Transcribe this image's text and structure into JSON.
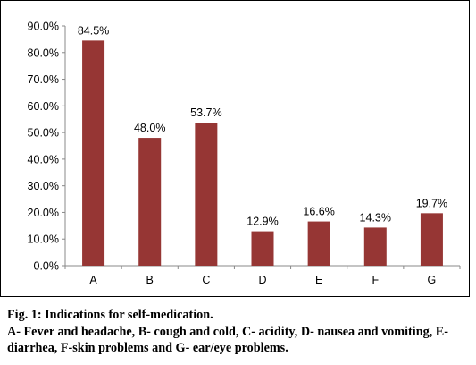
{
  "chart_data": {
    "type": "bar",
    "categories": [
      "A",
      "B",
      "C",
      "D",
      "E",
      "F",
      "G"
    ],
    "values": [
      84.5,
      48.0,
      53.7,
      12.9,
      16.6,
      14.3,
      19.7
    ],
    "data_labels": [
      "84.5%",
      "48.0%",
      "53.7%",
      "12.9%",
      "16.6%",
      "14.3%",
      "19.7%"
    ],
    "y_ticks": [
      "0.0%",
      "10.0%",
      "20.0%",
      "30.0%",
      "40.0%",
      "50.0%",
      "60.0%",
      "70.0%",
      "80.0%",
      "90.0%"
    ],
    "ylim": [
      0,
      90
    ],
    "bar_color": "#963634",
    "grid": false,
    "legend": "none"
  },
  "caption": {
    "line1": "Fig. 1: Indications for self-medication.",
    "line2": "A- Fever and headache, B- cough and cold, C- acidity, D- nausea and vomiting, E- diarrhea, F-skin problems and G- ear/eye problems."
  }
}
